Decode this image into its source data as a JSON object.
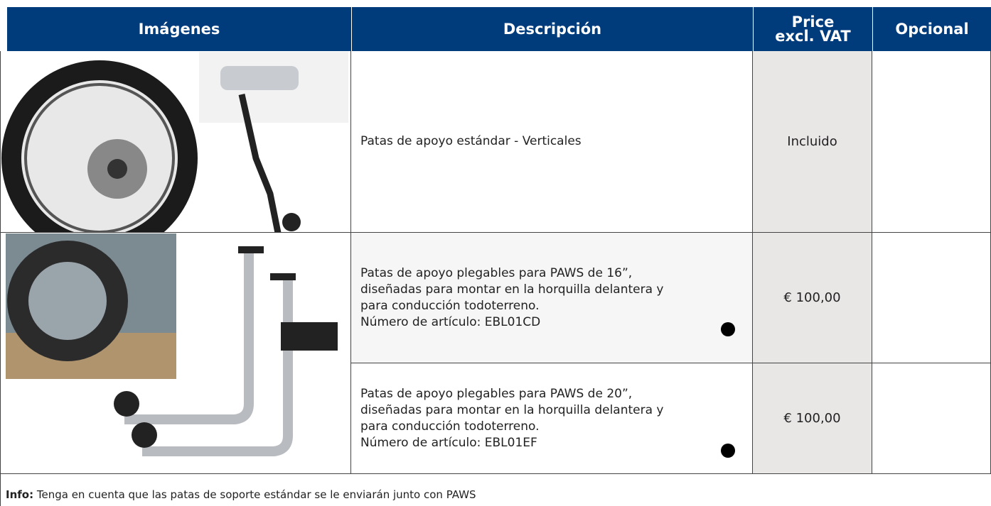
{
  "header": {
    "columns": [
      "Imágenes",
      "Descripción",
      [
        "Price",
        "excl. VAT"
      ],
      "Opcional"
    ]
  },
  "table": {
    "rows": [
      {
        "description": [
          "Patas de apoyo estándar - Verticales"
        ],
        "price": "Incluido"
      },
      {
        "description": [
          "Patas de apoyo plegables para PAWS de 16”,",
          "diseñadas para montar en la horquilla delantera y",
          "para conducción todoterreno.",
          "Número de artículo: EBL01CD"
        ],
        "price": "€ 100,00"
      },
      {
        "description": [
          "Patas de apoyo plegables para PAWS de 20”,",
          "diseñadas para montar en la horquilla delantera y",
          "para conducción todoterreno.",
          "Número de artículo: EBL01EF"
        ],
        "price": "€ 100,00"
      }
    ]
  },
  "info": {
    "label": "Info:",
    "text": "Tenga en cuenta que las patas de soporte estándar se le enviarán junto con PAWS"
  }
}
